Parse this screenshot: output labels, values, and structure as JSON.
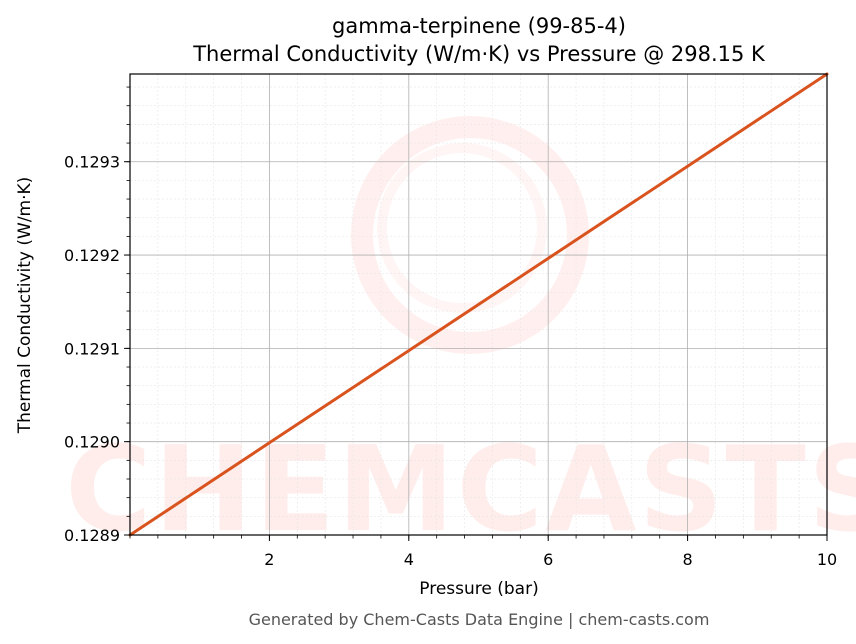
{
  "chart_data": {
    "type": "line",
    "title": "gamma-terpinene (99-85-4)",
    "subtitle": "Thermal Conductivity (W/m·K) vs Pressure @ 298.15 K",
    "xlabel": "Pressure (bar)",
    "ylabel": "Thermal Conductivity (W/m·K)",
    "xlim": [
      0.0,
      10.0
    ],
    "ylim": [
      0.1289,
      0.129394
    ],
    "x_ticks": [
      2,
      4,
      6,
      8,
      10
    ],
    "x_tick_labels": [
      "2",
      "4",
      "6",
      "8",
      "10"
    ],
    "y_ticks": [
      0.1289,
      0.129,
      0.1291,
      0.1292,
      0.1293
    ],
    "y_tick_labels": [
      "0.1289",
      "0.1290",
      "0.1291",
      "0.1292",
      "0.1293"
    ],
    "grid": true,
    "series": [
      {
        "color": "#d9531e",
        "x": [
          0.0,
          2.0,
          4.0,
          6.0,
          8.0,
          10.0
        ],
        "y": [
          0.1289,
          0.1289988,
          0.1290976,
          0.1291964,
          0.1292952,
          0.129394
        ]
      }
    ]
  },
  "watermark": {
    "text": "CHEMCASTS",
    "color": "#ff4433"
  },
  "footer": "Generated by Chem-Casts Data Engine | chem-casts.com"
}
